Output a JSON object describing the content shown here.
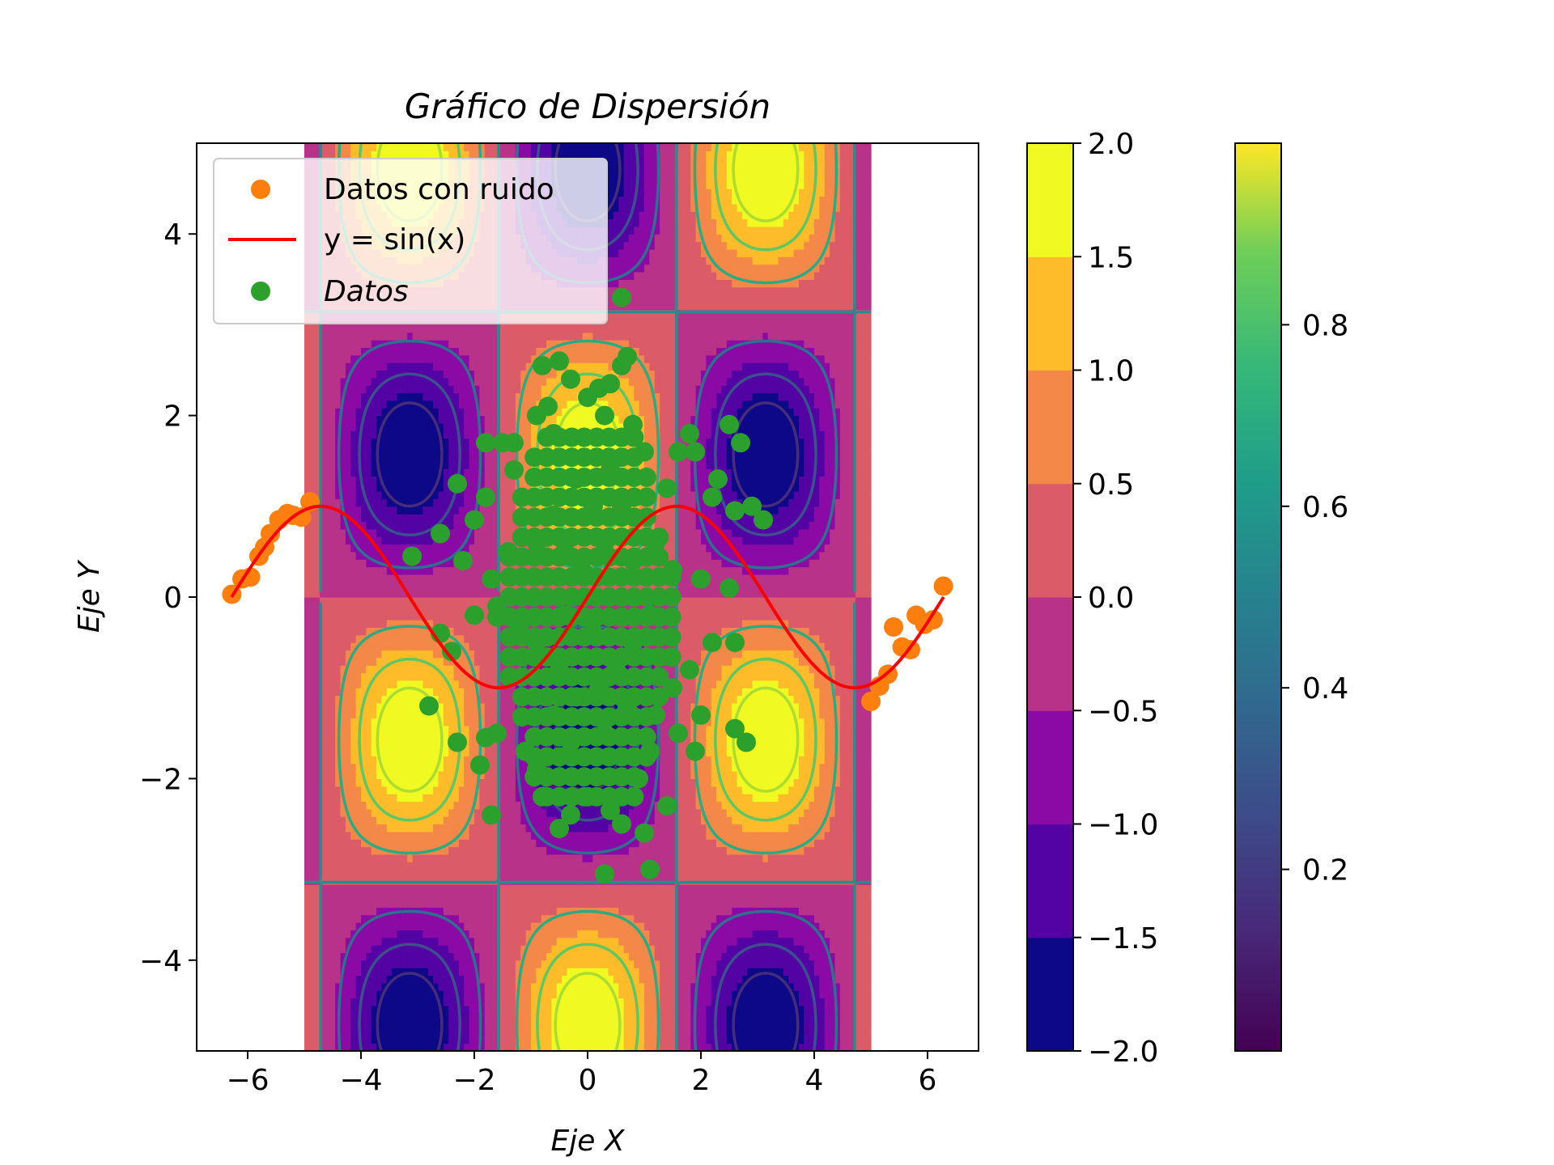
{
  "chart_data": {
    "type": "scatter",
    "title": "Gráfico de Dispersión",
    "xlabel": "Eje X",
    "ylabel": "Eje Y",
    "xlim": [
      -6.9,
      6.9
    ],
    "ylim": [
      -5,
      5
    ],
    "xticks": [
      -6,
      -4,
      -2,
      0,
      2,
      4,
      6
    ],
    "yticks": [
      -4,
      -2,
      0,
      2,
      4
    ],
    "xtick_labels": [
      "−6",
      "−4",
      "−2",
      "0",
      "2",
      "4",
      "6"
    ],
    "ytick_labels": [
      "−4",
      "−2",
      "0",
      "2",
      "4"
    ],
    "grid": false,
    "legend_position": "top-left",
    "background_field": {
      "function": "sin(x)*cos(y) + cos(x)*sin(y) ... z = sin(x)^2-like periodic field",
      "x_range": [
        -5,
        5
      ],
      "y_range": [
        -5,
        5
      ],
      "colormap": "plasma",
      "levels": [
        -2.0,
        -1.5,
        -1.0,
        -0.5,
        0.0,
        0.5,
        1.0,
        1.5,
        2.0
      ]
    },
    "colorbar_plasma": {
      "ticks": [
        "2.0",
        "1.5",
        "1.0",
        "0.5",
        "0.0",
        "−0.5",
        "−1.0",
        "−1.5",
        "−2.0"
      ],
      "range": [
        -2,
        2
      ],
      "colors": [
        "#0d0887",
        "#5302a3",
        "#8b0aa5",
        "#b83289",
        "#db5c68",
        "#f48849",
        "#febc2a",
        "#f0f921"
      ]
    },
    "colorbar_viridis": {
      "ticks": [
        "0.2",
        "0.4",
        "0.6",
        "0.8"
      ],
      "tick_values": [
        0.2,
        0.4,
        0.6,
        0.8
      ],
      "range": [
        0.0,
        1.0
      ]
    },
    "series": [
      {
        "name": "Datos con ruido",
        "kind": "scatter",
        "color": "#ff7f0e",
        "points": [
          [
            -6.28,
            0.03
          ],
          [
            -6.1,
            0.2
          ],
          [
            -5.95,
            0.22
          ],
          [
            -5.8,
            0.45
          ],
          [
            -5.7,
            0.55
          ],
          [
            -5.6,
            0.7
          ],
          [
            -5.45,
            0.85
          ],
          [
            -5.3,
            0.92
          ],
          [
            -5.2,
            0.9
          ],
          [
            -5.05,
            0.88
          ],
          [
            -4.9,
            1.05
          ],
          [
            5.0,
            -1.15
          ],
          [
            5.15,
            -0.98
          ],
          [
            5.3,
            -0.85
          ],
          [
            5.4,
            -0.33
          ],
          [
            5.55,
            -0.55
          ],
          [
            5.7,
            -0.58
          ],
          [
            5.8,
            -0.2
          ],
          [
            5.95,
            -0.3
          ],
          [
            6.1,
            -0.25
          ],
          [
            6.28,
            0.12
          ]
        ]
      },
      {
        "name": "y = sin(x)",
        "kind": "line",
        "color": "#ff0000",
        "x_range": [
          -6.283,
          6.283
        ]
      },
      {
        "name": "Datos",
        "kind": "scatter",
        "color": "#2ca02c",
        "points": [
          [
            0.6,
            3.3
          ],
          [
            -0.8,
            2.55
          ],
          [
            -0.5,
            2.6
          ],
          [
            0.2,
            2.3
          ],
          [
            0.4,
            2.35
          ],
          [
            0.6,
            2.55
          ],
          [
            0.7,
            2.65
          ],
          [
            -0.3,
            2.4
          ],
          [
            0.0,
            2.2
          ],
          [
            -0.7,
            2.1
          ],
          [
            -0.9,
            2.0
          ],
          [
            0.3,
            2.0
          ],
          [
            0.8,
            1.9
          ],
          [
            1.6,
            1.6
          ],
          [
            2.5,
            1.9
          ],
          [
            2.7,
            1.7
          ],
          [
            1.8,
            1.8
          ],
          [
            1.9,
            1.6
          ],
          [
            -1.5,
            1.7
          ],
          [
            -1.8,
            1.7
          ],
          [
            -1.3,
            1.7
          ],
          [
            -0.6,
            1.8
          ],
          [
            1.0,
            1.6
          ],
          [
            2.3,
            1.3
          ],
          [
            2.2,
            1.1
          ],
          [
            2.6,
            0.95
          ],
          [
            3.1,
            0.85
          ],
          [
            2.9,
            1.0
          ],
          [
            1.4,
            1.2
          ],
          [
            -2.3,
            1.25
          ],
          [
            -2.0,
            0.85
          ],
          [
            -1.8,
            1.1
          ],
          [
            -1.3,
            1.4
          ],
          [
            -2.6,
            0.7
          ],
          [
            -3.1,
            0.45
          ],
          [
            -2.2,
            0.4
          ],
          [
            0.8,
            0.4
          ],
          [
            1.2,
            0.6
          ],
          [
            1.5,
            0.3
          ],
          [
            2.0,
            0.2
          ],
          [
            2.5,
            0.1
          ],
          [
            2.6,
            -0.5
          ],
          [
            2.2,
            -0.5
          ],
          [
            1.8,
            -0.8
          ],
          [
            1.5,
            -1.0
          ],
          [
            1.2,
            -1.3
          ],
          [
            1.6,
            -1.5
          ],
          [
            1.9,
            -1.7
          ],
          [
            2.0,
            -1.3
          ],
          [
            1.1,
            -1.7
          ],
          [
            0.9,
            -2.0
          ],
          [
            1.4,
            -2.3
          ],
          [
            0.6,
            -2.5
          ],
          [
            0.4,
            -2.35
          ],
          [
            0.0,
            -2.2
          ],
          [
            -0.3,
            -2.4
          ],
          [
            -0.5,
            -2.55
          ],
          [
            -0.9,
            -1.9
          ],
          [
            -1.1,
            -1.7
          ],
          [
            -1.6,
            -1.5
          ],
          [
            -1.8,
            -1.55
          ],
          [
            -1.9,
            -1.85
          ],
          [
            -1.7,
            -2.4
          ],
          [
            -2.3,
            -1.6
          ],
          [
            -2.4,
            -0.6
          ],
          [
            -2.6,
            -0.4
          ],
          [
            -2.0,
            -0.2
          ],
          [
            -1.6,
            -0.1
          ],
          [
            -1.2,
            -0.3
          ],
          [
            -0.9,
            -0.5
          ],
          [
            -0.5,
            -0.8
          ],
          [
            -0.2,
            -1.1
          ],
          [
            0.2,
            -1.0
          ],
          [
            0.5,
            -0.8
          ],
          [
            0.8,
            -0.5
          ],
          [
            1.1,
            -0.2
          ],
          [
            -0.4,
            -0.2
          ],
          [
            -0.1,
            0.3
          ],
          [
            0.3,
            0.6
          ],
          [
            -0.6,
            0.9
          ],
          [
            -0.9,
            0.6
          ],
          [
            -1.4,
            0.5
          ],
          [
            -1.7,
            0.2
          ],
          [
            0.1,
            1.0
          ],
          [
            -0.2,
            1.3
          ],
          [
            0.4,
            1.4
          ],
          [
            0.6,
            1.0
          ],
          [
            -0.4,
            0.5
          ],
          [
            0.1,
            -0.4
          ],
          [
            0.3,
            -1.5
          ],
          [
            -0.3,
            -1.6
          ],
          [
            -0.6,
            -1.3
          ],
          [
            0.7,
            -1.2
          ],
          [
            0.3,
            -3.05
          ],
          [
            1.1,
            -3.0
          ],
          [
            2.8,
            -1.6
          ],
          [
            -2.8,
            -1.2
          ],
          [
            2.6,
            -1.45
          ],
          [
            1.0,
            -2.6
          ],
          [
            -0.8,
            -2.2
          ]
        ]
      }
    ]
  },
  "legend": {
    "items": [
      {
        "label": "Datos con ruido",
        "color": "#ff7f0e",
        "kind": "marker"
      },
      {
        "label": "y = sin(x)",
        "color": "#ff0000",
        "kind": "line"
      },
      {
        "label": "Datos",
        "color": "#2ca02c",
        "kind": "marker",
        "italic": true
      }
    ]
  }
}
